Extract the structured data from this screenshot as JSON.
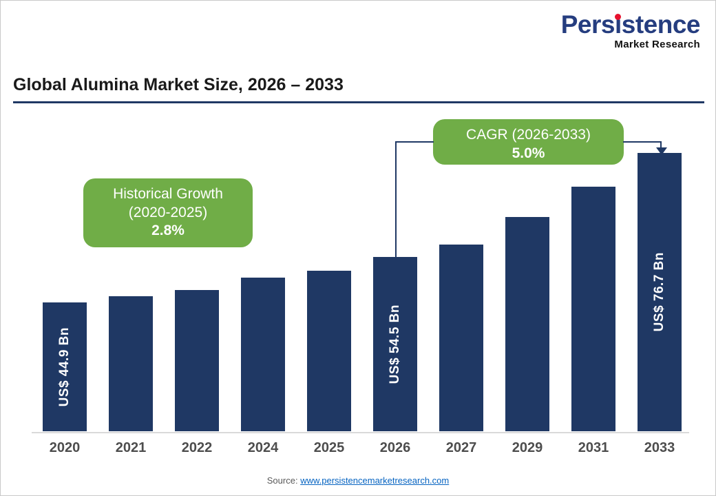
{
  "logo": {
    "name_pre": "Pers",
    "name_i": "i",
    "name_post": "stence",
    "subtitle": "Market Research"
  },
  "header": {
    "title": "Global Alumina Market Size, 2026 – 2033"
  },
  "footer": {
    "source_prefix": "Source:",
    "source_link": "www.persistencemarketresearch.com"
  },
  "colors": {
    "bar": "#1F3864",
    "annotation_green": "#70AD47",
    "logo_navy": "#253D7F",
    "logo_dot_red": "#E8112D",
    "link_blue": "#0563C1",
    "title_rule": "#1F3864"
  },
  "chart_data": {
    "type": "bar",
    "title": "Global Alumina Market Size, 2026 – 2033",
    "categories": [
      "2020",
      "2021",
      "2022",
      "2024",
      "2025",
      "2026",
      "2027",
      "2029",
      "2031",
      "2033"
    ],
    "values": [
      44.9,
      46.2,
      47.5,
      50.2,
      51.6,
      54.5,
      57.2,
      63.1,
      69.6,
      76.7
    ],
    "unit": "US$ Bn",
    "bar_value_labels": [
      "US$ 44.9 Bn",
      null,
      null,
      null,
      null,
      "US$ 54.5 Bn",
      null,
      null,
      null,
      "US$ 76.7 Bn"
    ],
    "ylim": [
      0,
      80
    ],
    "grid": false,
    "legend": false,
    "bar_color": "#1F3864",
    "annotations": {
      "historical": {
        "line1": "Historical Growth",
        "line2": "(2020-2025)",
        "line3": "2.8%",
        "applies_to": "2020-2025"
      },
      "cagr": {
        "line1": "CAGR (2026-2033)",
        "line2": "5.0%",
        "applies_to": "2026-2033"
      }
    }
  }
}
